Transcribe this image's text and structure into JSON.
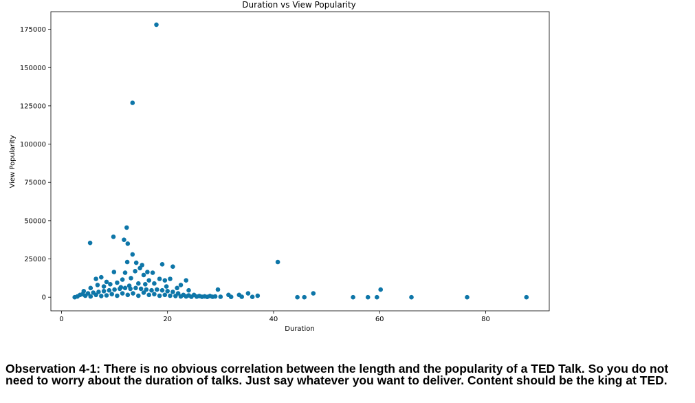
{
  "chart_data": {
    "type": "scatter",
    "title": "Duration vs View Popularity",
    "xlabel": "Duration",
    "ylabel": "View Popularity",
    "xlim": [
      -2,
      92
    ],
    "ylim": [
      -8900,
      186500
    ],
    "xticks": [
      0,
      20,
      40,
      60,
      80
    ],
    "yticks": [
      0,
      25000,
      50000,
      75000,
      100000,
      125000,
      150000,
      175000
    ],
    "grid": false,
    "marker_color": "#0e76a8",
    "points": [
      [
        17.9,
        178000
      ],
      [
        13.4,
        127000
      ],
      [
        12.3,
        45500
      ],
      [
        9.8,
        39500
      ],
      [
        11.8,
        37500
      ],
      [
        5.4,
        35500
      ],
      [
        12.5,
        35000
      ],
      [
        13.4,
        28000
      ],
      [
        12.4,
        23000
      ],
      [
        14.1,
        22500
      ],
      [
        15.2,
        21000
      ],
      [
        19.0,
        21500
      ],
      [
        21.0,
        20000
      ],
      [
        14.8,
        19000
      ],
      [
        16.2,
        16500
      ],
      [
        17.2,
        16000
      ],
      [
        12.0,
        16000
      ],
      [
        9.9,
        16500
      ],
      [
        13.9,
        17000
      ],
      [
        15.5,
        14500
      ],
      [
        18.5,
        12000
      ],
      [
        20.5,
        12000
      ],
      [
        23.5,
        11000
      ],
      [
        7.5,
        13000
      ],
      [
        6.5,
        12000
      ],
      [
        11.5,
        11500
      ],
      [
        13.1,
        12500
      ],
      [
        16.5,
        11000
      ],
      [
        19.5,
        11000
      ],
      [
        8.5,
        10000
      ],
      [
        9.2,
        8500
      ],
      [
        10.5,
        9500
      ],
      [
        14.5,
        9000
      ],
      [
        22.5,
        8000
      ],
      [
        17.5,
        9000
      ],
      [
        6.8,
        8000
      ],
      [
        5.5,
        6000
      ],
      [
        4.2,
        4000
      ],
      [
        12.8,
        7500
      ],
      [
        15.8,
        8500
      ],
      [
        21.8,
        6000
      ],
      [
        24.0,
        4500
      ],
      [
        19.8,
        7000
      ],
      [
        11.2,
        6500
      ],
      [
        8.0,
        7000
      ],
      [
        40.8,
        23000
      ],
      [
        29.5,
        5000
      ],
      [
        47.5,
        2500
      ],
      [
        60.2,
        5000
      ],
      [
        31.5,
        1500
      ],
      [
        33.5,
        1500
      ],
      [
        35.2,
        2500
      ],
      [
        37.0,
        1000
      ],
      [
        2.5,
        0
      ],
      [
        3.0,
        500
      ],
      [
        3.5,
        1500
      ],
      [
        4.0,
        2000
      ],
      [
        4.5,
        1000
      ],
      [
        5.0,
        2500
      ],
      [
        5.5,
        500
      ],
      [
        6.0,
        3000
      ],
      [
        6.5,
        1500
      ],
      [
        7.0,
        3500
      ],
      [
        7.5,
        800
      ],
      [
        8.0,
        4000
      ],
      [
        8.5,
        1200
      ],
      [
        9.0,
        4500
      ],
      [
        9.5,
        2000
      ],
      [
        10.0,
        5000
      ],
      [
        10.5,
        1000
      ],
      [
        11.0,
        5500
      ],
      [
        11.5,
        2500
      ],
      [
        12.0,
        6000
      ],
      [
        12.5,
        1500
      ],
      [
        13.0,
        5500
      ],
      [
        13.5,
        2500
      ],
      [
        14.0,
        6000
      ],
      [
        14.5,
        1000
      ],
      [
        15.0,
        5500
      ],
      [
        15.5,
        3000
      ],
      [
        16.0,
        5000
      ],
      [
        16.5,
        1500
      ],
      [
        17.0,
        4500
      ],
      [
        17.5,
        2000
      ],
      [
        18.0,
        5000
      ],
      [
        18.5,
        1000
      ],
      [
        19.0,
        4500
      ],
      [
        19.5,
        1500
      ],
      [
        20.0,
        4000
      ],
      [
        20.5,
        1000
      ],
      [
        21.0,
        3500
      ],
      [
        21.5,
        800
      ],
      [
        22.0,
        2500
      ],
      [
        22.5,
        500
      ],
      [
        23.0,
        1500
      ],
      [
        23.5,
        500
      ],
      [
        24.0,
        1200
      ],
      [
        24.5,
        300
      ],
      [
        25.0,
        1500
      ],
      [
        25.5,
        400
      ],
      [
        26.0,
        800
      ],
      [
        26.5,
        300
      ],
      [
        27.0,
        600
      ],
      [
        27.5,
        200
      ],
      [
        28.0,
        800
      ],
      [
        28.5,
        300
      ],
      [
        29.0,
        500
      ],
      [
        30.0,
        300
      ],
      [
        32.0,
        200
      ],
      [
        34.0,
        300
      ],
      [
        36.0,
        200
      ],
      [
        44.5,
        0
      ],
      [
        45.8,
        0
      ],
      [
        55.0,
        0
      ],
      [
        57.8,
        0
      ],
      [
        59.5,
        0
      ],
      [
        66.0,
        0
      ],
      [
        76.5,
        0
      ],
      [
        87.7,
        0
      ]
    ]
  },
  "observation": {
    "text": "Observation 4-1: There is no obvious correlation between the length and the popularity of a TED Talk. So you do not need to worry about the duration of talks. Just say whatever you want to deliver. Content should be the king at TED."
  }
}
